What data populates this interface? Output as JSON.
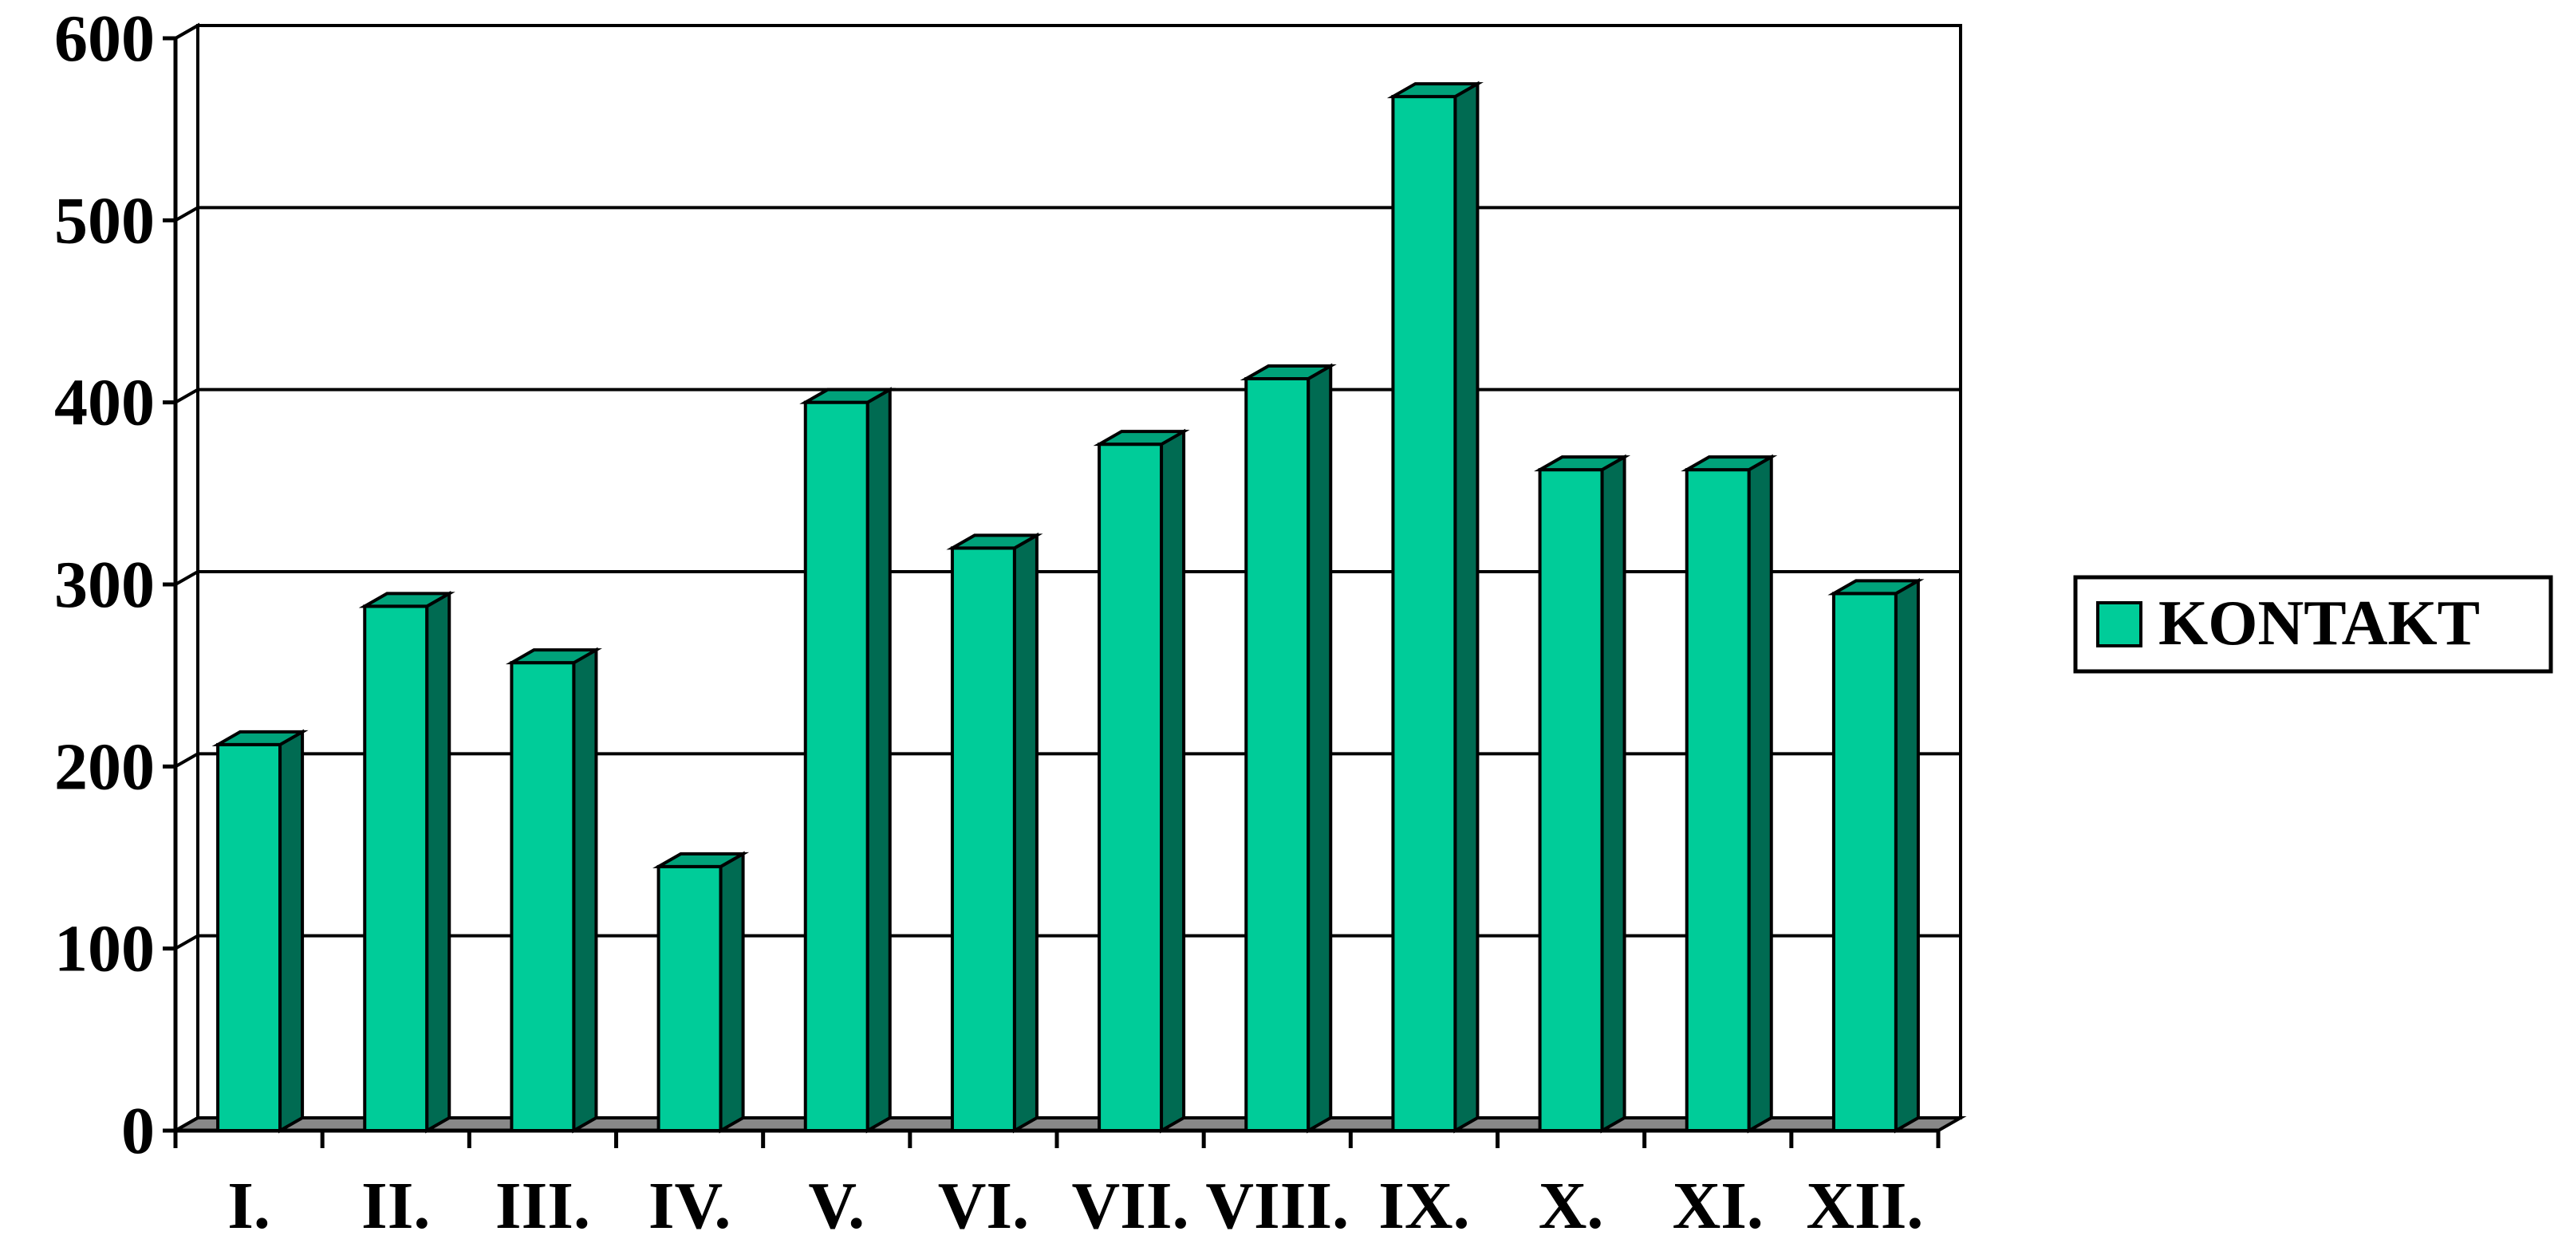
{
  "chart_data": {
    "type": "bar",
    "categories": [
      "I.",
      "II.",
      "III.",
      "IV.",
      "V.",
      "VI.",
      "VII.",
      "VIII.",
      "IX.",
      "X.",
      "XI.",
      "XII."
    ],
    "series": [
      {
        "name": "KONTAKT",
        "values": [
          212,
          288,
          257,
          145,
          400,
          320,
          377,
          413,
          568,
          363,
          363,
          295
        ]
      }
    ],
    "ylim": [
      0,
      600
    ],
    "yticks": [
      "0",
      "100",
      "200",
      "300",
      "400",
      "500",
      "600"
    ],
    "grid": true,
    "legend_position": "right",
    "three_d": true
  },
  "colors": {
    "bar_front": "#00cc99",
    "bar_top": "#00a27a",
    "bar_side": "#006b52",
    "floor": "#888888",
    "gridline": "#000000",
    "axis": "#000000"
  }
}
